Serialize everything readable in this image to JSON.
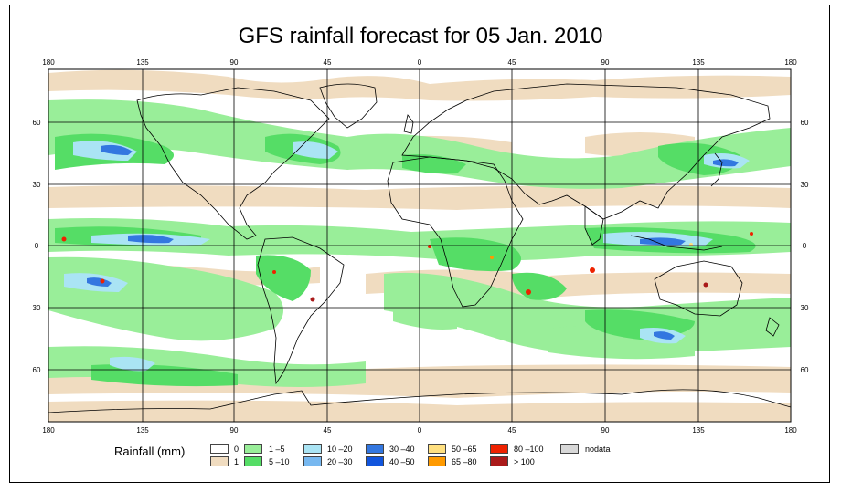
{
  "title": "GFS rainfall forecast for 05 Jan. 2010",
  "lon_ticks": [
    "180",
    "135",
    "90",
    "45",
    "0",
    "45",
    "90",
    "135",
    "180"
  ],
  "lat_ticks": [
    "60",
    "30",
    "0",
    "30",
    "60"
  ],
  "legend": {
    "title": "Rainfall (mm)",
    "items": [
      {
        "label": "0",
        "color": "#ffffff"
      },
      {
        "label": "1",
        "color": "#f0dcc0"
      },
      {
        "label": "1 –5",
        "color": "#99ee99"
      },
      {
        "label": "5 –10",
        "color": "#55dd66"
      },
      {
        "label": "10 –20",
        "color": "#aae4f4"
      },
      {
        "label": "20 –30",
        "color": "#77b8f0"
      },
      {
        "label": "30 –40",
        "color": "#3377e0"
      },
      {
        "label": "40 –50",
        "color": "#1155dd"
      },
      {
        "label": "50 –65",
        "color": "#ffe080"
      },
      {
        "label": "65 –80",
        "color": "#ff9a00"
      },
      {
        "label": "80 –100",
        "color": "#ee2200"
      },
      {
        "label": "> 100",
        "color": "#aa1a1a"
      },
      {
        "label": "nodata",
        "color": "#d8d8d8"
      }
    ]
  }
}
